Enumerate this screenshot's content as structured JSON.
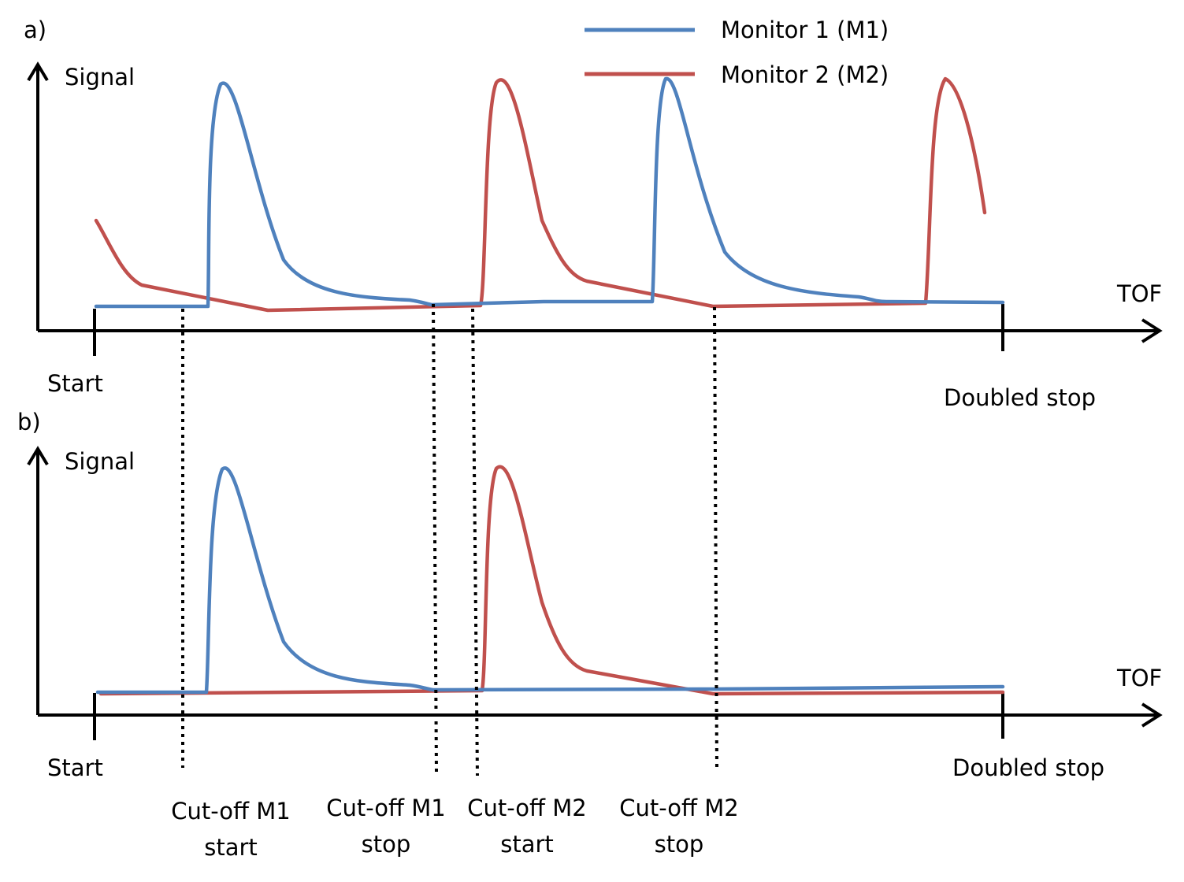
{
  "panels": [
    {
      "id": "a",
      "tag": "a)",
      "y_label": "Signal",
      "x_label": "TOF",
      "start_label": "Start",
      "stop_label": "Doubled stop"
    },
    {
      "id": "b",
      "tag": "b)",
      "y_label": "Signal",
      "x_label": "TOF",
      "start_label": "Start",
      "stop_label": "Doubled stop"
    }
  ],
  "legend": [
    {
      "label": "Monitor 1 (M1)",
      "color": "#4F81BD"
    },
    {
      "label": "Monitor 2 (M2)",
      "color": "#C0504D"
    }
  ],
  "cutoffs": [
    {
      "line1": "Cut-off M1",
      "line2": "start"
    },
    {
      "line1": "Cut-off M1",
      "line2": "stop"
    },
    {
      "line1": "Cut-off M2",
      "line2": "start"
    },
    {
      "line1": "Cut-off M2",
      "line2": "stop"
    }
  ]
}
